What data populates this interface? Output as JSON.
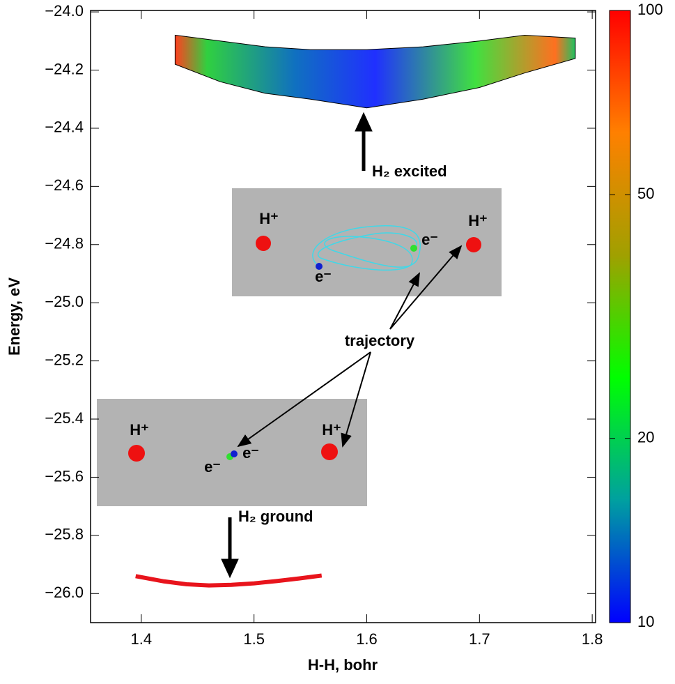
{
  "chart_data": {
    "type": "energy-map",
    "x_label": "H-H, bohr",
    "y_label": "Energy, eV",
    "xlim": [
      1.355,
      1.803
    ],
    "ylim": [
      -26.1,
      -23.995
    ],
    "xticks": [
      1.4,
      1.5,
      1.6,
      1.7,
      1.8
    ],
    "yticks": [
      {
        "value": -24.0,
        "label": "−24.0"
      },
      {
        "value": -24.2,
        "label": "−24.2"
      },
      {
        "value": -24.4,
        "label": "−24.4"
      },
      {
        "value": -24.6,
        "label": "−24.6"
      },
      {
        "value": -24.8,
        "label": "−24.8"
      },
      {
        "value": -25.0,
        "label": "−25.0"
      },
      {
        "value": -25.2,
        "label": "−25.2"
      },
      {
        "value": -25.4,
        "label": "−25.4"
      },
      {
        "value": -25.6,
        "label": "−25.6"
      },
      {
        "value": -25.8,
        "label": "−25.8"
      },
      {
        "value": -26.0,
        "label": "−26.0"
      }
    ],
    "ground": {
      "color": "#e8141c",
      "x": [
        1.395,
        1.42,
        1.44,
        1.46,
        1.48,
        1.5,
        1.52,
        1.54,
        1.56
      ],
      "y": [
        -25.94,
        -25.958,
        -25.968,
        -25.972,
        -25.97,
        -25.965,
        -25.957,
        -25.948,
        -25.938
      ]
    },
    "excited": {
      "x": [
        1.43,
        1.47,
        1.51,
        1.55,
        1.6,
        1.65,
        1.7,
        1.74,
        1.785
      ],
      "upper": [
        -24.08,
        -24.1,
        -24.12,
        -24.13,
        -24.13,
        -24.12,
        -24.1,
        -24.08,
        -24.09
      ],
      "lower": [
        -24.18,
        -24.24,
        -24.28,
        -24.3,
        -24.33,
        -24.3,
        -24.26,
        -24.21,
        -24.16
      ]
    },
    "colorbar": {
      "zlim": [
        10,
        100
      ],
      "zticks": [
        10,
        20,
        50,
        100
      ],
      "log": true,
      "colormap": [
        "#0000ff",
        "#00a0a0",
        "#00ff00",
        "#a0a000",
        "#ff8000",
        "#ff0000"
      ]
    },
    "annotations": [
      "H₂ excited",
      "H₂ ground",
      "trajectory",
      "H⁺",
      "H⁺",
      "e⁻",
      "e⁻",
      "H⁺",
      "H⁺",
      "e⁻",
      "e⁻"
    ]
  }
}
